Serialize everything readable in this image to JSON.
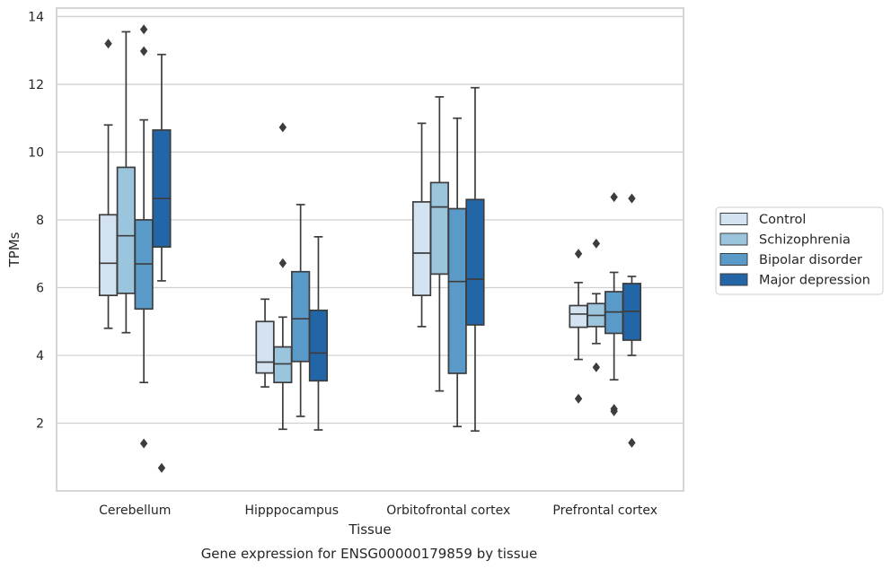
{
  "caption": "Gene expression for ENSG00000179859 by tissue",
  "chart_data": {
    "type": "box",
    "title": "",
    "xlabel": "Tissue",
    "ylabel": "TPMs",
    "ylim": [
      0.0,
      14.25
    ],
    "yticks": [
      2,
      4,
      6,
      8,
      10,
      12,
      14
    ],
    "grid": "horizontal",
    "legend_position": "right",
    "categories": [
      "Cerebellum",
      "Hipppocampus",
      "Orbitofrontal cortex",
      "Prefrontal cortex"
    ],
    "series": [
      {
        "name": "Control",
        "color": "#d4e3f2",
        "boxes": [
          {
            "whislo": 4.8,
            "q1": 5.77,
            "med": 6.72,
            "q3": 8.15,
            "whishi": 10.8,
            "fliers": [
              13.2
            ]
          },
          {
            "whislo": 3.07,
            "q1": 3.48,
            "med": 3.8,
            "q3": 5.0,
            "whishi": 5.66,
            "fliers": []
          },
          {
            "whislo": 4.85,
            "q1": 5.77,
            "med": 7.02,
            "q3": 8.53,
            "whishi": 10.85,
            "fliers": []
          },
          {
            "whislo": 3.88,
            "q1": 4.83,
            "med": 5.22,
            "q3": 5.47,
            "whishi": 6.15,
            "fliers": [
              7.0,
              2.72
            ]
          }
        ]
      },
      {
        "name": "Schizophrenia",
        "color": "#9bc4dd",
        "boxes": [
          {
            "whislo": 4.67,
            "q1": 5.83,
            "med": 7.53,
            "q3": 9.55,
            "whishi": 13.55,
            "fliers": []
          },
          {
            "whislo": 1.82,
            "q1": 3.2,
            "med": 3.75,
            "q3": 4.25,
            "whishi": 5.13,
            "fliers": [
              10.73,
              6.72
            ]
          },
          {
            "whislo": 2.95,
            "q1": 6.4,
            "med": 8.38,
            "q3": 9.1,
            "whishi": 11.63,
            "fliers": []
          },
          {
            "whislo": 4.35,
            "q1": 4.85,
            "med": 5.18,
            "q3": 5.53,
            "whishi": 5.82,
            "fliers": [
              7.3,
              3.65
            ]
          }
        ]
      },
      {
        "name": "Bipolar disorder",
        "color": "#5a9ac9",
        "boxes": [
          {
            "whislo": 3.2,
            "q1": 5.37,
            "med": 6.7,
            "q3": 8.0,
            "whishi": 10.95,
            "fliers": [
              13.62,
              12.98,
              1.4
            ]
          },
          {
            "whislo": 2.2,
            "q1": 3.82,
            "med": 5.08,
            "q3": 6.47,
            "whishi": 8.45,
            "fliers": []
          },
          {
            "whislo": 1.9,
            "q1": 3.47,
            "med": 6.18,
            "q3": 8.33,
            "whishi": 11.0,
            "fliers": []
          },
          {
            "whislo": 3.28,
            "q1": 4.65,
            "med": 5.28,
            "q3": 5.88,
            "whishi": 6.45,
            "fliers": [
              8.67,
              2.42,
              2.35
            ]
          }
        ]
      },
      {
        "name": "Major depression",
        "color": "#2266a8",
        "boxes": [
          {
            "whislo": 6.2,
            "q1": 7.2,
            "med": 8.63,
            "q3": 10.65,
            "whishi": 12.88,
            "fliers": [
              0.68
            ]
          },
          {
            "whislo": 1.8,
            "q1": 3.25,
            "med": 4.07,
            "q3": 5.33,
            "whishi": 7.5,
            "fliers": []
          },
          {
            "whislo": 1.77,
            "q1": 4.9,
            "med": 6.25,
            "q3": 8.6,
            "whishi": 11.9,
            "fliers": []
          },
          {
            "whislo": 4.0,
            "q1": 4.45,
            "med": 5.3,
            "q3": 6.12,
            "whishi": 6.33,
            "fliers": [
              8.63,
              1.42
            ]
          }
        ]
      }
    ]
  }
}
